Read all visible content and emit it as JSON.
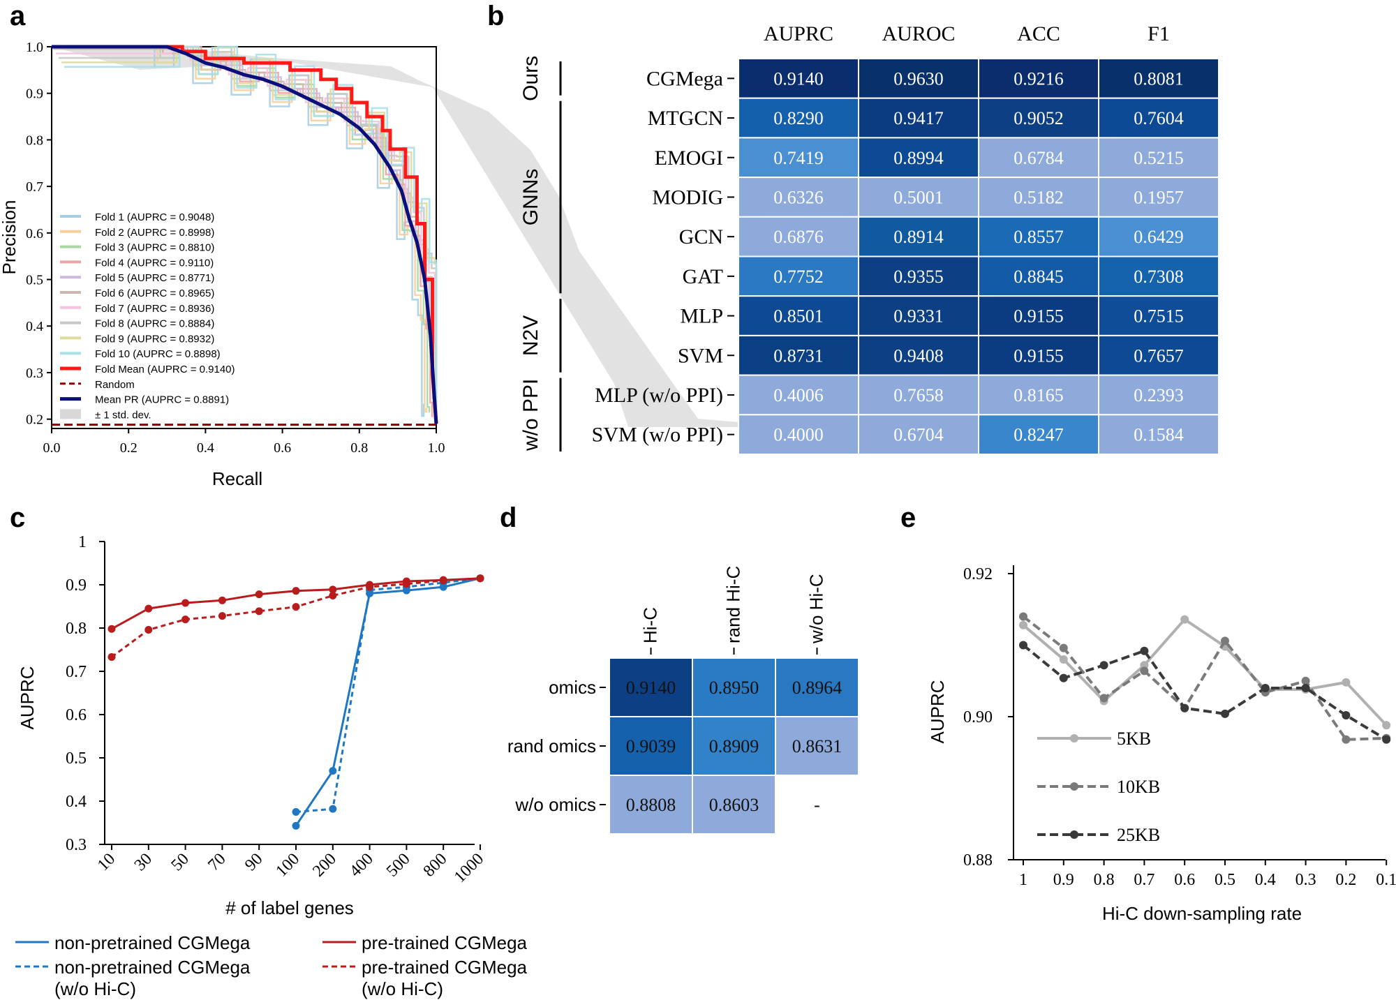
{
  "panels": {
    "a": {
      "letter": "a"
    },
    "b": {
      "letter": "b"
    },
    "c": {
      "letter": "c"
    },
    "d": {
      "letter": "d"
    },
    "e": {
      "letter": "e"
    }
  },
  "chart_data": [
    {
      "id": "a",
      "type": "line",
      "title": "",
      "xlabel": "Recall",
      "ylabel": "Precision",
      "xlim": [
        0,
        1
      ],
      "ylim": [
        0.18,
        1.0
      ],
      "xticks": [
        "0.0",
        "0.2",
        "0.4",
        "0.6",
        "0.8",
        "1.0"
      ],
      "yticks": [
        "0.2",
        "0.3",
        "0.4",
        "0.5",
        "0.6",
        "0.7",
        "0.8",
        "0.9",
        "1.0"
      ],
      "legend": [
        {
          "label": "Fold 1 (AUPRC = 0.9048)",
          "color": "#a6cfe6"
        },
        {
          "label": "Fold 2 (AUPRC = 0.8998)",
          "color": "#f8cf9d"
        },
        {
          "label": "Fold 3 (AUPRC = 0.8810)",
          "color": "#a8d8a0"
        },
        {
          "label": "Fold 4 (AUPRC = 0.9110)",
          "color": "#eea3a3"
        },
        {
          "label": "Fold 5 (AUPRC = 0.8771)",
          "color": "#cdb8e0"
        },
        {
          "label": "Fold 6 (AUPRC = 0.8965)",
          "color": "#ccb8ae"
        },
        {
          "label": "Fold 7 (AUPRC = 0.8936)",
          "color": "#f3c4e0"
        },
        {
          "label": "Fold 8 (AUPRC = 0.8884)",
          "color": "#c8c8c8"
        },
        {
          "label": "Fold 9 (AUPRC = 0.8932)",
          "color": "#dcdc9c"
        },
        {
          "label": "Fold 10 (AUPRC = 0.8898)",
          "color": "#a8e0e8"
        },
        {
          "label": "Fold Mean (AUPRC = 0.9140)",
          "color": "#ff1a1a"
        },
        {
          "label": "Random",
          "color": "#8b0000"
        },
        {
          "label": "Mean PR (AUPRC = 0.8891)",
          "color": "#0a0f7a"
        },
        {
          "label": "± 1 std. dev.",
          "color": "#d8d8d8"
        }
      ],
      "series": [
        {
          "name": "Fold Mean",
          "x": [
            0,
            0.34,
            0.34,
            0.4,
            0.4,
            0.5,
            0.5,
            0.62,
            0.62,
            0.7,
            0.7,
            0.74,
            0.74,
            0.78,
            0.78,
            0.82,
            0.82,
            0.86,
            0.86,
            0.88,
            0.88,
            0.92,
            0.92,
            0.95,
            0.95,
            0.97,
            0.97,
            0.99,
            0.99,
            1.0
          ],
          "y": [
            1.0,
            1.0,
            0.99,
            0.99,
            0.975,
            0.975,
            0.965,
            0.965,
            0.95,
            0.95,
            0.93,
            0.93,
            0.91,
            0.91,
            0.88,
            0.88,
            0.85,
            0.85,
            0.82,
            0.82,
            0.78,
            0.78,
            0.72,
            0.72,
            0.62,
            0.62,
            0.5,
            0.5,
            0.3,
            0.19
          ]
        },
        {
          "name": "Mean PR",
          "x": [
            0,
            0.3,
            0.35,
            0.4,
            0.45,
            0.5,
            0.55,
            0.6,
            0.65,
            0.7,
            0.75,
            0.8,
            0.84,
            0.88,
            0.91,
            0.93,
            0.95,
            0.97,
            0.985,
            0.995,
            1.0
          ],
          "y": [
            1.0,
            1.0,
            0.985,
            0.965,
            0.955,
            0.94,
            0.93,
            0.915,
            0.895,
            0.875,
            0.855,
            0.825,
            0.79,
            0.74,
            0.69,
            0.63,
            0.58,
            0.5,
            0.38,
            0.25,
            0.19
          ]
        },
        {
          "name": "Random",
          "x": [
            0,
            1
          ],
          "y": [
            0.188,
            0.188
          ]
        }
      ]
    },
    {
      "id": "b",
      "type": "heatmap",
      "columns": [
        "AUPRC",
        "AUROC",
        "ACC",
        "F1"
      ],
      "rows": [
        "CGMega",
        "MTGCN",
        "EMOGI",
        "MODIG",
        "GCN",
        "GAT",
        "MLP",
        "SVM",
        "MLP (w/o PPI)",
        "SVM (w/o PPI)"
      ],
      "values": [
        [
          "0.9140",
          "0.9630",
          "0.9216",
          "0.8081"
        ],
        [
          "0.8290",
          "0.9417",
          "0.9052",
          "0.7604"
        ],
        [
          "0.7419",
          "0.8994",
          "0.6784",
          "0.5215"
        ],
        [
          "0.6326",
          "0.5001",
          "0.5182",
          "0.1957"
        ],
        [
          "0.6876",
          "0.8914",
          "0.8557",
          "0.6429"
        ],
        [
          "0.7752",
          "0.9355",
          "0.8845",
          "0.7308"
        ],
        [
          "0.8501",
          "0.9331",
          "0.9155",
          "0.7515"
        ],
        [
          "0.8731",
          "0.9408",
          "0.9155",
          "0.7657"
        ],
        [
          "0.4006",
          "0.7658",
          "0.8165",
          "0.2393"
        ],
        [
          "0.4000",
          "0.6704",
          "0.8247",
          "0.1584"
        ]
      ],
      "colors": [
        [
          "#0a2d6e",
          "#08306b",
          "#0a2d6e",
          "#08306b"
        ],
        [
          "#1560ad",
          "#0b3b80",
          "#0d3f85",
          "#0d4a95"
        ],
        [
          "#4a8fd2",
          "#0e4a94",
          "#8eaadb",
          "#8eaadb"
        ],
        [
          "#8eaadb",
          "#8eaadb",
          "#8eaadb",
          "#8eaadb"
        ],
        [
          "#8eaadb",
          "#125a9f",
          "#1a6ab5",
          "#4a8fd2"
        ],
        [
          "#2b79c2",
          "#0d3f85",
          "#135ba6",
          "#1562ad"
        ],
        [
          "#0e4a94",
          "#0d3f85",
          "#0b3b80",
          "#0f4d98"
        ],
        [
          "#0b3f84",
          "#0d3f85",
          "#0b3b80",
          "#0e4a94"
        ],
        [
          "#8eaadb",
          "#8eaadb",
          "#8eaadb",
          "#8eaadb"
        ],
        [
          "#8eaadb",
          "#8eaadb",
          "#3a86cc",
          "#8eaadb"
        ]
      ],
      "groups": [
        {
          "label": "Ours"
        },
        {
          "label": "GNNs"
        },
        {
          "label": "N2V"
        },
        {
          "label": "w/o PPI"
        }
      ]
    },
    {
      "id": "c",
      "type": "line",
      "xlabel": "# of label genes",
      "ylabel": "AUPRC",
      "categories": [
        "10",
        "30",
        "50",
        "70",
        "90",
        "100",
        "200",
        "400",
        "500",
        "800",
        "1000"
      ],
      "ylim": [
        0.3,
        1.0
      ],
      "yticks": [
        "0.3",
        "0.4",
        "0.5",
        "0.6",
        "0.7",
        "0.8",
        "0.9",
        "1"
      ],
      "series": [
        {
          "name": "non-pretrained CGMega",
          "color": "#1f77c4",
          "dash": false,
          "values": [
            null,
            null,
            null,
            null,
            null,
            0.343,
            0.47,
            0.88,
            0.887,
            0.895,
            0.915
          ]
        },
        {
          "name": "non-pretrained CGMega (w/o Hi-C)",
          "color": "#1f77c4",
          "dash": true,
          "values": [
            null,
            null,
            null,
            null,
            null,
            0.375,
            0.382,
            0.888,
            0.895,
            0.905,
            0.915
          ]
        },
        {
          "name": "pre-trained CGMega",
          "color": "#b81c1c",
          "dash": false,
          "values": [
            0.798,
            0.845,
            0.858,
            0.864,
            0.878,
            0.886,
            0.889,
            0.9,
            0.908,
            0.911,
            0.915
          ]
        },
        {
          "name": "pre-trained CGMega (w/o Hi-C)",
          "color": "#b81c1c",
          "dash": true,
          "values": [
            0.733,
            0.796,
            0.82,
            0.828,
            0.839,
            0.849,
            0.875,
            0.895,
            0.902,
            0.91,
            0.915
          ]
        }
      ],
      "legend": {
        "s1_line1": "non-pretrained CGMega",
        "s2_line1": "non-pretrained CGMega",
        "s2_line2": "(w/o Hi-C)",
        "s3_line1": "pre-trained CGMega",
        "s4_line1": "pre-trained CGMega",
        "s4_line2": "(w/o Hi-C)"
      }
    },
    {
      "id": "d",
      "type": "heatmap",
      "columns": [
        "Hi-C",
        "rand Hi-C",
        "w/o Hi-C"
      ],
      "rows": [
        "omics",
        "rand omics",
        "w/o omics"
      ],
      "values": [
        [
          "0.9140",
          "0.8950",
          "0.8964"
        ],
        [
          "0.9039",
          "0.8909",
          "0.8631"
        ],
        [
          "0.8808",
          "0.8603",
          "-"
        ]
      ],
      "colors": [
        [
          "#0d3f85",
          "#2b7ac4",
          "#2a78c2"
        ],
        [
          "#1561ac",
          "#3282c9",
          "#8eaadb"
        ],
        [
          "#8eaadb",
          "#8eaadb",
          "#ffffff"
        ]
      ]
    },
    {
      "id": "e",
      "type": "line",
      "xlabel": "Hi-C down-sampling rate",
      "ylabel": "AUPRC",
      "categories": [
        "1",
        "0.9",
        "0.8",
        "0.7",
        "0.6",
        "0.5",
        "0.4",
        "0.3",
        "0.2",
        "0.1"
      ],
      "ylim": [
        0.88,
        0.92
      ],
      "yticks": [
        "0.88",
        "0.90",
        "0.92"
      ],
      "series": [
        {
          "name": "5KB",
          "color": "#b0b0b0",
          "dash": false,
          "values": [
            0.9128,
            0.908,
            0.9022,
            0.9072,
            0.9136,
            0.9098,
            0.9038,
            0.9038,
            0.9048,
            0.8988
          ]
        },
        {
          "name": "10KB",
          "color": "#7a7a7a",
          "dash": true,
          "values": [
            0.914,
            0.9096,
            0.9026,
            0.9064,
            0.9012,
            0.9106,
            0.9034,
            0.905,
            0.8968,
            0.897
          ]
        },
        {
          "name": "25KB",
          "color": "#3a3a3a",
          "dash": true,
          "values": [
            0.91,
            0.9054,
            0.9072,
            0.9092,
            0.9012,
            0.9004,
            0.904,
            0.904,
            0.9002,
            0.8968
          ]
        }
      ]
    }
  ]
}
